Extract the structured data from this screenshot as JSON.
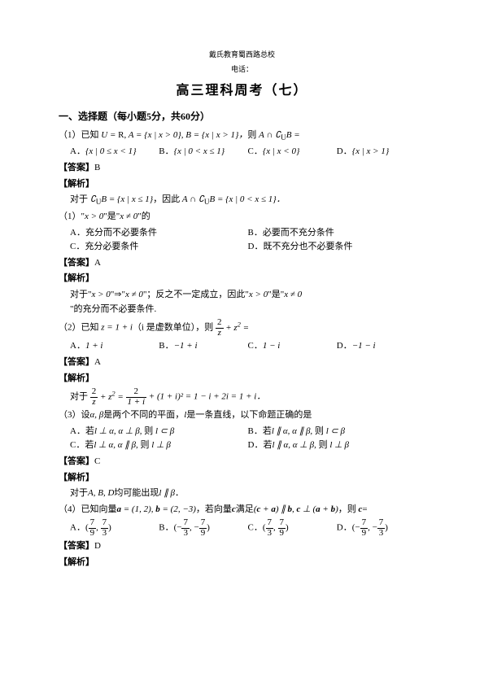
{
  "meta": {
    "line1": "戴氏教育蜀西路总校",
    "line2": "电话："
  },
  "title": "高三理科周考（七）",
  "section1": {
    "heading": "一、选择题（每小题5分，共60分）",
    "q1": {
      "stem_pre": "（1）已知 ",
      "stem_math": "U = R, A = {x | x > 0}, B = {x | x > 1}，则 A ∩ ∁_U B =",
      "A": "{x | 0 ≤ x < 1}",
      "B": "{x | 0 < x ≤ 1}",
      "C": "{x | x < 0}",
      "D": "{x | x > 1}",
      "ans_label": "【答案】",
      "ans": "B",
      "exp_label": "【解析】",
      "exp1_pre": "对于 ",
      "exp1_math": "∁_U B = {x | x ≤ 1}",
      "exp1_mid": "，因此 ",
      "exp1_math2": "A ∩ ∁_U B = {x | 0 < x ≤ 1}．",
      "q1b_pre": "（1）\"",
      "q1b_m1": "x > 0",
      "q1b_mid": "\"是\"",
      "q1b_m2": "x ≠ 0",
      "q1b_post": "\"的",
      "bA": "充分而不必要条件",
      "bB": "必要而不充分条件",
      "bC": "充分必要条件",
      "bD": "既不充分也不必要条件",
      "ans2": "A",
      "exp2_pre": "对于\"",
      "exp2_m1": "x > 0",
      "exp2_arrow": "\"⇒\"",
      "exp2_m2": "x ≠ 0",
      "exp2_mid": "\"；反之不一定成立，因此\"",
      "exp2_m3": "x > 0",
      "exp2_mid2": "\"是\"",
      "exp2_m4": "x ≠ 0",
      "exp2_post": "\"的充分而不必要条件."
    },
    "q2": {
      "stem_pre": "（2）已知 ",
      "stem_m1": "z = 1 + i",
      "stem_mid": "（i 是虚数单位），则 ",
      "stem_frac_num": "2",
      "stem_frac_den": "z",
      "stem_plus": " + z² =",
      "A": "1 + i",
      "B": "−1 + i",
      "C": "1 − i",
      "D": "−1 − i",
      "ans": "A",
      "exp_pre": "对于 ",
      "exp_frac1_num": "2",
      "exp_frac1_den": "z",
      "exp_plus": " + z² = ",
      "exp_frac2_num": "2",
      "exp_frac2_den": "1 + i",
      "exp_tail": " + (1 + i)² = 1 − i + 2i = 1 + i．"
    },
    "q3": {
      "stem_pre": "（3）设",
      "stem_m1": "α, β",
      "stem_mid": "是两个不同的平面，",
      "stem_m2": "l",
      "stem_post": "是一条直线，以下命题正确的是",
      "A_pre": "若",
      "A_m1": "l ⊥ α, α ⊥ β, ",
      "A_mid": "则 ",
      "A_m2": "l ⊂ β",
      "B_pre": "若",
      "B_m1": "l ∥ α, α ∥ β, ",
      "B_mid": "则 ",
      "B_m2": "l ⊂ β",
      "C_pre": "若",
      "C_m1": "l ⊥ α, α ∥ β, ",
      "C_mid": "则 ",
      "C_m2": "l ⊥ β",
      "D_pre": "若",
      "D_m1": "l ∥ α, α ⊥ β, ",
      "D_mid": "则 ",
      "D_m2": "l ⊥ β",
      "ans": "C",
      "exp_pre": "对于",
      "exp_m1": "A, B, D",
      "exp_mid": "均可能出现",
      "exp_m2": "l ∥ β",
      "exp_post": "．"
    },
    "q4": {
      "stem_pre": "（4）已知向量",
      "stem_m1": "a = (1, 2), b = (2, −3)",
      "stem_mid": "，若向量",
      "stem_m2": "c",
      "stem_mid2": "满足",
      "stem_m3": "(c + a) ∥ b, c ⊥ (a + b)",
      "stem_mid3": "，则 ",
      "stem_m4": "c",
      "stem_post": "=",
      "A_f1n": "7",
      "A_f1d": "9",
      "A_f2n": "7",
      "A_f2d": "3",
      "B_f1n": "7",
      "B_f1d": "3",
      "B_f2n": "7",
      "B_f2d": "9",
      "C_f1n": "7",
      "C_f1d": "3",
      "C_f2n": "7",
      "C_f2d": "9",
      "D_f1n": "7",
      "D_f1d": "9",
      "D_f2n": "7",
      "D_f2d": "3",
      "ans": "D"
    },
    "labels": {
      "ans": "【答案】",
      "exp": "【解析】",
      "A": "A．",
      "B": "B．",
      "C": "C．",
      "D": "D．"
    }
  }
}
